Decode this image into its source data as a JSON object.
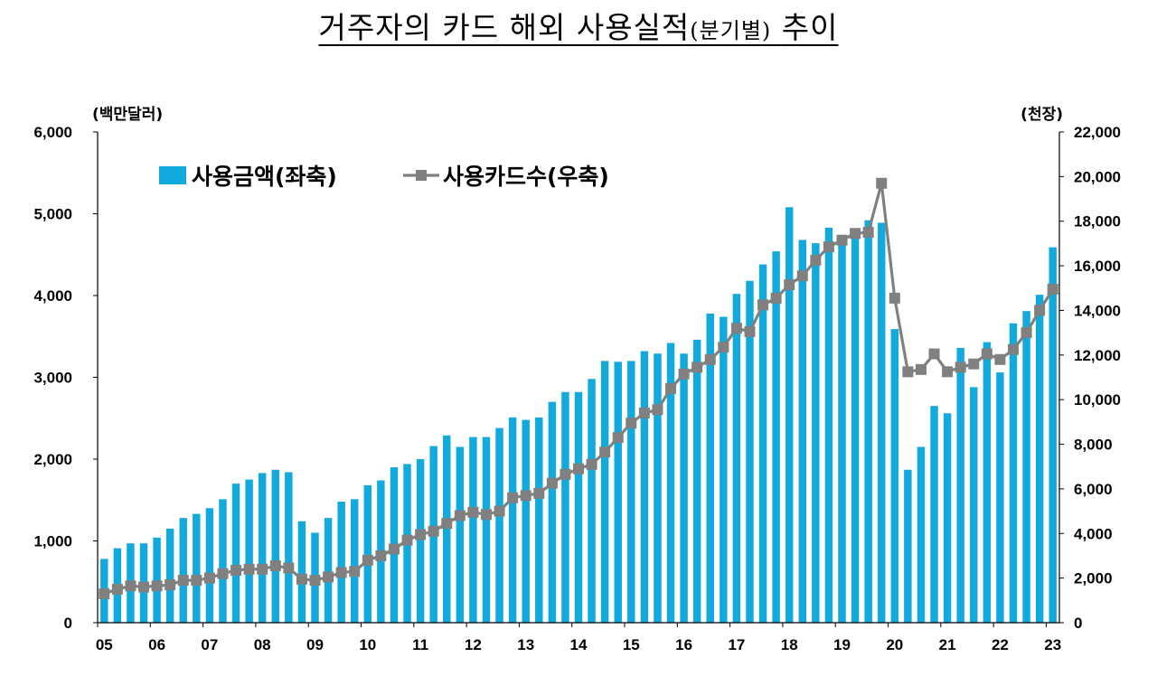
{
  "title": {
    "main": "거주자의 카드 해외 사용실적",
    "paren": "(분기별)",
    "tail": "추이"
  },
  "colors": {
    "bar": "#12a9dd",
    "line": "#808080"
  },
  "chart_data": {
    "type": "bar+line",
    "left_unit": "(백만달러)",
    "right_unit": "(천장)",
    "left_axis": {
      "ylim": [
        0,
        6000
      ],
      "ticks": [
        "0",
        "1,000",
        "2,000",
        "3,000",
        "4,000",
        "5,000",
        "6,000"
      ]
    },
    "right_axis": {
      "ylim": [
        0,
        22000
      ],
      "ticks": [
        "0",
        "2,000",
        "4,000",
        "6,000",
        "8,000",
        "10,000",
        "12,000",
        "14,000",
        "16,000",
        "18,000",
        "20,000",
        "22,000"
      ]
    },
    "x_tick_labels": [
      "05",
      "06",
      "07",
      "08",
      "09",
      "10",
      "11",
      "12",
      "13",
      "14",
      "15",
      "16",
      "17",
      "18",
      "19",
      "20",
      "21",
      "22",
      "23"
    ],
    "legend": [
      {
        "name": "사용금액(좌축)",
        "type": "bar"
      },
      {
        "name": "사용카드수(우축)",
        "type": "line"
      }
    ],
    "series": [
      {
        "name": "사용금액(좌축)",
        "axis": "left",
        "values": [
          780,
          910,
          970,
          970,
          1040,
          1150,
          1280,
          1330,
          1400,
          1510,
          1700,
          1750,
          1830,
          1870,
          1840,
          1240,
          1100,
          1280,
          1480,
          1510,
          1680,
          1740,
          1900,
          1940,
          2000,
          2160,
          2290,
          2150,
          2270,
          2270,
          2380,
          2510,
          2480,
          2510,
          2700,
          2820,
          2820,
          2980,
          3200,
          3190,
          3200,
          3320,
          3290,
          3420,
          3290,
          3460,
          3780,
          3740,
          4020,
          4180,
          4380,
          4540,
          5080,
          4680,
          4640,
          4830,
          4690,
          4780,
          4920,
          4890,
          3590,
          1870,
          2150,
          2650,
          2560,
          3360,
          2880,
          3430,
          3060,
          3660,
          3810,
          4010,
          4590
        ]
      },
      {
        "name": "사용카드수(우축)",
        "axis": "right",
        "values": [
          1300,
          1500,
          1650,
          1600,
          1650,
          1700,
          1900,
          1900,
          2000,
          2200,
          2350,
          2400,
          2400,
          2550,
          2450,
          1950,
          1900,
          2050,
          2250,
          2300,
          2800,
          3000,
          3300,
          3700,
          3950,
          4100,
          4450,
          4800,
          4950,
          4850,
          5000,
          5600,
          5700,
          5800,
          6250,
          6650,
          6900,
          7100,
          7650,
          8300,
          8950,
          9400,
          9550,
          10500,
          11150,
          11450,
          11800,
          12350,
          13200,
          13050,
          14250,
          14550,
          15150,
          15550,
          16250,
          16850,
          17150,
          17450,
          17500,
          19700,
          14550,
          11250,
          11350,
          12050,
          11250,
          11450,
          11600,
          12050,
          11800,
          12250,
          13000,
          14000,
          14950
        ]
      }
    ]
  }
}
